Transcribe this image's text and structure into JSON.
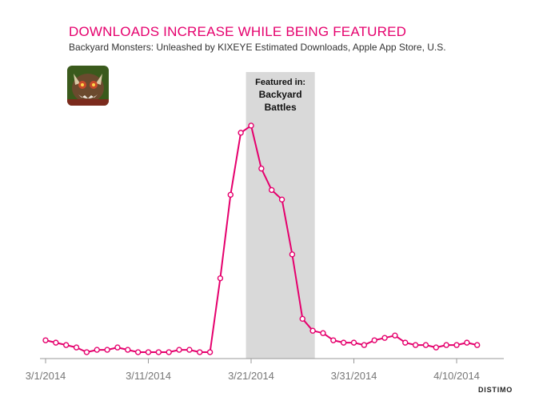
{
  "title": "DOWNLOADS INCREASE WHILE BEING FEATURED",
  "subtitle": "Backyard Monsters: Unleashed by KIXEYE Estimated Downloads, Apple App Store, U.S.",
  "brand": "DISTIMO",
  "app_icon": "backyard-monsters-app-icon",
  "colors": {
    "line": "#e5006d",
    "highlight": "#d9d9d9",
    "axis": "#999999",
    "title": "#e5006d"
  },
  "chart_data": {
    "type": "line",
    "title": "DOWNLOADS INCREASE WHILE BEING FEATURED",
    "subtitle": "Backyard Monsters: Unleashed by KIXEYE Estimated Downloads, Apple App Store, U.S.",
    "xlabel": "",
    "ylabel": "",
    "x_start": "3/1/2014",
    "x_ticks": [
      "3/1/2014",
      "3/11/2014",
      "3/21/2014",
      "3/31/2014",
      "4/10/2014"
    ],
    "ylim": [
      0,
      100
    ],
    "grid": false,
    "series": [
      {
        "values": [
          7,
          6,
          5,
          4,
          2,
          3,
          3,
          4,
          3,
          2,
          2,
          2,
          2,
          3,
          3,
          2,
          2,
          33,
          68,
          94,
          97,
          79,
          70,
          66,
          43,
          16,
          11,
          10,
          7,
          6,
          6,
          5,
          7,
          8,
          9,
          6,
          5,
          5,
          4,
          5,
          5,
          6,
          5
        ]
      }
    ],
    "annotations": [
      {
        "type": "shaded-band",
        "x_from": 19.5,
        "x_to": 26.2,
        "lines": [
          "Featured in:",
          "Backyard",
          "Battles"
        ]
      }
    ]
  }
}
